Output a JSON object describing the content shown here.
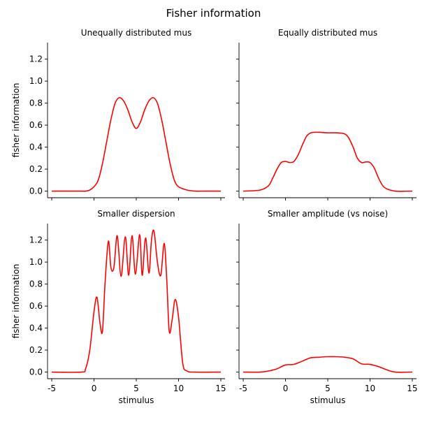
{
  "figure": {
    "title": "Fisher information"
  },
  "chart_data": [
    {
      "type": "line",
      "title": "Unequally distributed mus",
      "xlabel": "",
      "ylabel": "fisher information",
      "xlim": [
        -5.5,
        15.5
      ],
      "ylim": [
        -0.06,
        1.35
      ],
      "xticks": [
        -5,
        0,
        5,
        10,
        15
      ],
      "yticks": [
        0.0,
        0.2,
        0.4,
        0.6,
        0.8,
        1.0,
        1.2
      ],
      "show_xticklabels": false,
      "show_yticklabels": true,
      "color": "#ff0000",
      "series": [
        {
          "x": [
            -5,
            -3,
            -2,
            -1,
            -0.5,
            0,
            0.5,
            1,
            1.5,
            2,
            2.5,
            3,
            3.5,
            4,
            4.5,
            5,
            5.5,
            6,
            6.5,
            7,
            7.5,
            8,
            8.5,
            9,
            9.5,
            10,
            11,
            12,
            13,
            15
          ],
          "y": [
            0.0,
            0.0,
            0.0,
            0.0,
            0.01,
            0.04,
            0.1,
            0.25,
            0.45,
            0.65,
            0.8,
            0.85,
            0.82,
            0.74,
            0.63,
            0.57,
            0.63,
            0.74,
            0.82,
            0.85,
            0.8,
            0.65,
            0.45,
            0.25,
            0.1,
            0.04,
            0.01,
            0.0,
            0.0,
            0.0
          ]
        }
      ]
    },
    {
      "type": "line",
      "title": "Equally distributed mus",
      "xlabel": "",
      "ylabel": "",
      "xlim": [
        -5.5,
        15.5
      ],
      "ylim": [
        -0.06,
        1.35
      ],
      "xticks": [
        -5,
        0,
        5,
        10,
        15
      ],
      "yticks": [
        0.0,
        0.2,
        0.4,
        0.6,
        0.8,
        1.0,
        1.2
      ],
      "show_xticklabels": false,
      "show_yticklabels": false,
      "color": "#ff0000",
      "series": [
        {
          "x": [
            -5,
            -3,
            -2,
            -1.5,
            -1,
            -0.5,
            0,
            0.5,
            1,
            1.5,
            2,
            2.5,
            3,
            3.5,
            4,
            5,
            6,
            7,
            7.5,
            8,
            8.5,
            9,
            9.5,
            10,
            10.5,
            11,
            11.5,
            12,
            13,
            15
          ],
          "y": [
            0.0,
            0.01,
            0.05,
            0.12,
            0.2,
            0.26,
            0.27,
            0.26,
            0.27,
            0.33,
            0.42,
            0.5,
            0.53,
            0.535,
            0.535,
            0.53,
            0.53,
            0.52,
            0.48,
            0.4,
            0.3,
            0.26,
            0.265,
            0.26,
            0.21,
            0.12,
            0.05,
            0.02,
            0.0,
            0.0
          ]
        }
      ]
    },
    {
      "type": "line",
      "title": "Smaller dispersion",
      "xlabel": "stimulus",
      "ylabel": "fisher information",
      "xlim": [
        -5.5,
        15.5
      ],
      "ylim": [
        -0.06,
        1.35
      ],
      "xticks": [
        -5,
        0,
        5,
        10,
        15
      ],
      "yticks": [
        0.0,
        0.2,
        0.4,
        0.6,
        0.8,
        1.0,
        1.2
      ],
      "show_xticklabels": true,
      "show_yticklabels": true,
      "color": "#ff0000",
      "series": [
        {
          "x": [
            -5,
            -1.5,
            -1,
            -0.5,
            0,
            0.35,
            0.7,
            1.0,
            1.3,
            1.7,
            2.0,
            2.35,
            2.75,
            3.2,
            3.7,
            4.1,
            4.5,
            4.9,
            5.4,
            5.7,
            6.1,
            6.5,
            6.8,
            7.1,
            7.5,
            7.9,
            8.3,
            8.6,
            8.9,
            9.25,
            9.6,
            10.0,
            10.5,
            11,
            12,
            15
          ],
          "y": [
            0.0,
            0.0,
            0.03,
            0.2,
            0.55,
            0.68,
            0.45,
            0.37,
            0.8,
            1.19,
            0.95,
            0.95,
            1.24,
            0.87,
            1.23,
            0.88,
            1.24,
            0.89,
            1.25,
            0.88,
            1.22,
            0.9,
            1.2,
            1.28,
            1.0,
            0.88,
            1.17,
            0.85,
            0.37,
            0.48,
            0.66,
            0.5,
            0.08,
            0.01,
            0.0,
            0.0
          ]
        }
      ]
    },
    {
      "type": "line",
      "title": "Smaller amplitude (vs noise)",
      "xlabel": "stimulus",
      "ylabel": "",
      "xlim": [
        -5.5,
        15.5
      ],
      "ylim": [
        -0.06,
        1.35
      ],
      "xticks": [
        -5,
        0,
        5,
        10,
        15
      ],
      "yticks": [
        0.0,
        0.2,
        0.4,
        0.6,
        0.8,
        1.0,
        1.2
      ],
      "show_xticklabels": true,
      "show_yticklabels": false,
      "color": "#ff0000",
      "series": [
        {
          "x": [
            -5,
            -3,
            -2,
            -1,
            0,
            1,
            2,
            3,
            4,
            5,
            6,
            7,
            8,
            9,
            10,
            11,
            12,
            13,
            15
          ],
          "y": [
            0.0,
            0.0,
            0.01,
            0.03,
            0.065,
            0.07,
            0.1,
            0.13,
            0.135,
            0.14,
            0.14,
            0.135,
            0.12,
            0.075,
            0.07,
            0.05,
            0.02,
            0.0,
            0.0
          ]
        }
      ]
    }
  ]
}
